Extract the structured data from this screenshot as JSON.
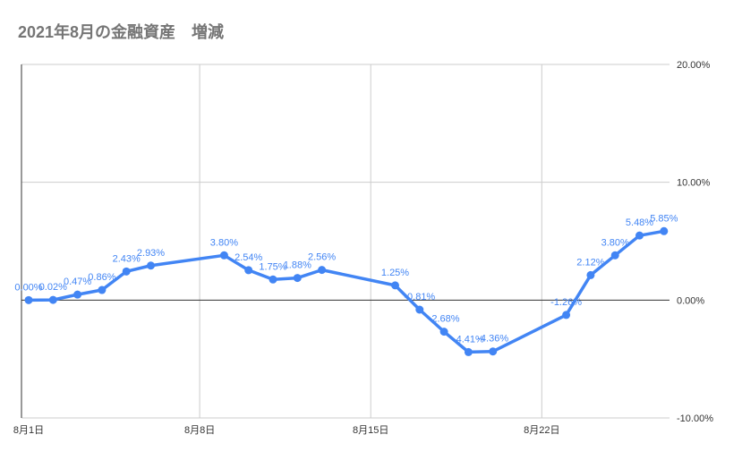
{
  "title": "2021年8月の金融資産　増減",
  "chart_data": {
    "type": "line",
    "title": "2021年8月の金融資産　増減",
    "x_tick_labels": [
      "8月1日",
      "8月8日",
      "8月15日",
      "8月22日"
    ],
    "x_tick_days": [
      1,
      8,
      15,
      22
    ],
    "y_tick_labels": [
      "20.00%",
      "10.00%",
      "0.00%",
      "-10.00%"
    ],
    "y_tick_values": [
      20,
      10,
      0,
      -10
    ],
    "ylim": [
      -10,
      20
    ],
    "y_axis_side": "right",
    "grid": true,
    "series": [
      {
        "color": "#4285f4",
        "points": [
          {
            "day": 1,
            "value": 0.0,
            "label": "0.00%"
          },
          {
            "day": 2,
            "value": 0.02,
            "label": "0.02%"
          },
          {
            "day": 3,
            "value": 0.47,
            "label": "0.47%"
          },
          {
            "day": 4,
            "value": 0.86,
            "label": "0.86%"
          },
          {
            "day": 5,
            "value": 2.43,
            "label": "2.43%"
          },
          {
            "day": 6,
            "value": 2.93,
            "label": "2.93%"
          },
          {
            "day": 9,
            "value": 3.8,
            "label": "3.80%"
          },
          {
            "day": 10,
            "value": 2.54,
            "label": "2.54%"
          },
          {
            "day": 11,
            "value": 1.75,
            "label": "1.75%"
          },
          {
            "day": 12,
            "value": 1.88,
            "label": "1.88%"
          },
          {
            "day": 13,
            "value": 2.56,
            "label": "2.56%"
          },
          {
            "day": 16,
            "value": 1.25,
            "label": "1.25%"
          },
          {
            "day": 17,
            "value": -0.81,
            "label": "-0.81%"
          },
          {
            "day": 18,
            "value": -2.68,
            "label": "-2.68%"
          },
          {
            "day": 19,
            "value": -4.41,
            "label": "-4.41%"
          },
          {
            "day": 20,
            "value": -4.36,
            "label": "-4.36%"
          },
          {
            "day": 23,
            "value": -1.26,
            "label": "-1.26%"
          },
          {
            "day": 24,
            "value": 2.12,
            "label": "2.12%"
          },
          {
            "day": 25,
            "value": 3.8,
            "label": "3.80%"
          },
          {
            "day": 26,
            "value": 5.48,
            "label": "5.48%"
          },
          {
            "day": 27,
            "value": 5.85,
            "label": "5.85%"
          }
        ]
      }
    ]
  }
}
